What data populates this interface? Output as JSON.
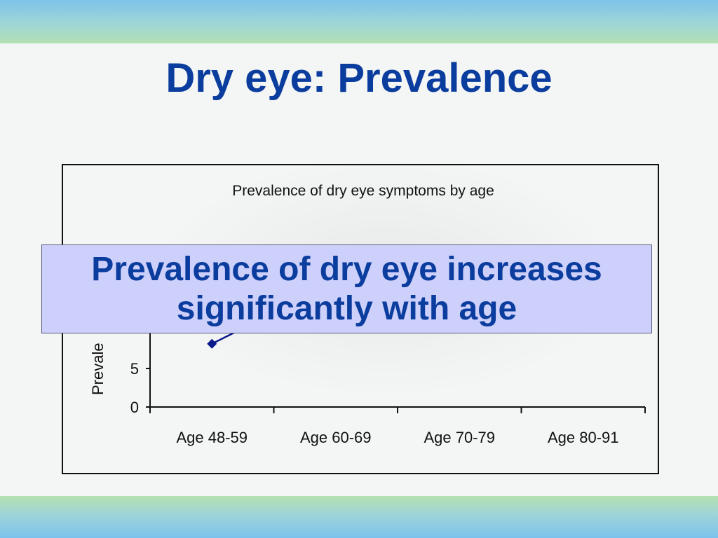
{
  "slide": {
    "title": "Dry eye: Prevalence"
  },
  "callout": {
    "line1": "Prevalence of dry eye increases",
    "line2": "significantly with age"
  },
  "colors": {
    "title": "#0b3d9e",
    "callout_bg": "#cdd0fb",
    "series": "#0a1a8c"
  },
  "chart_data": {
    "type": "line",
    "title": "Prevalence of dry eye symptoms by age",
    "ylabel": "Prevale",
    "xlabel": "",
    "categories": [
      "Age 48-59",
      "Age 60-69",
      "Age 70-79",
      "Age 80-91"
    ],
    "series": [
      {
        "values": [
          8.2,
          null,
          null,
          null
        ]
      }
    ],
    "y_ticks": [
      0,
      5
    ],
    "ylim": [
      0,
      20
    ],
    "grid": false,
    "legend": "none"
  }
}
